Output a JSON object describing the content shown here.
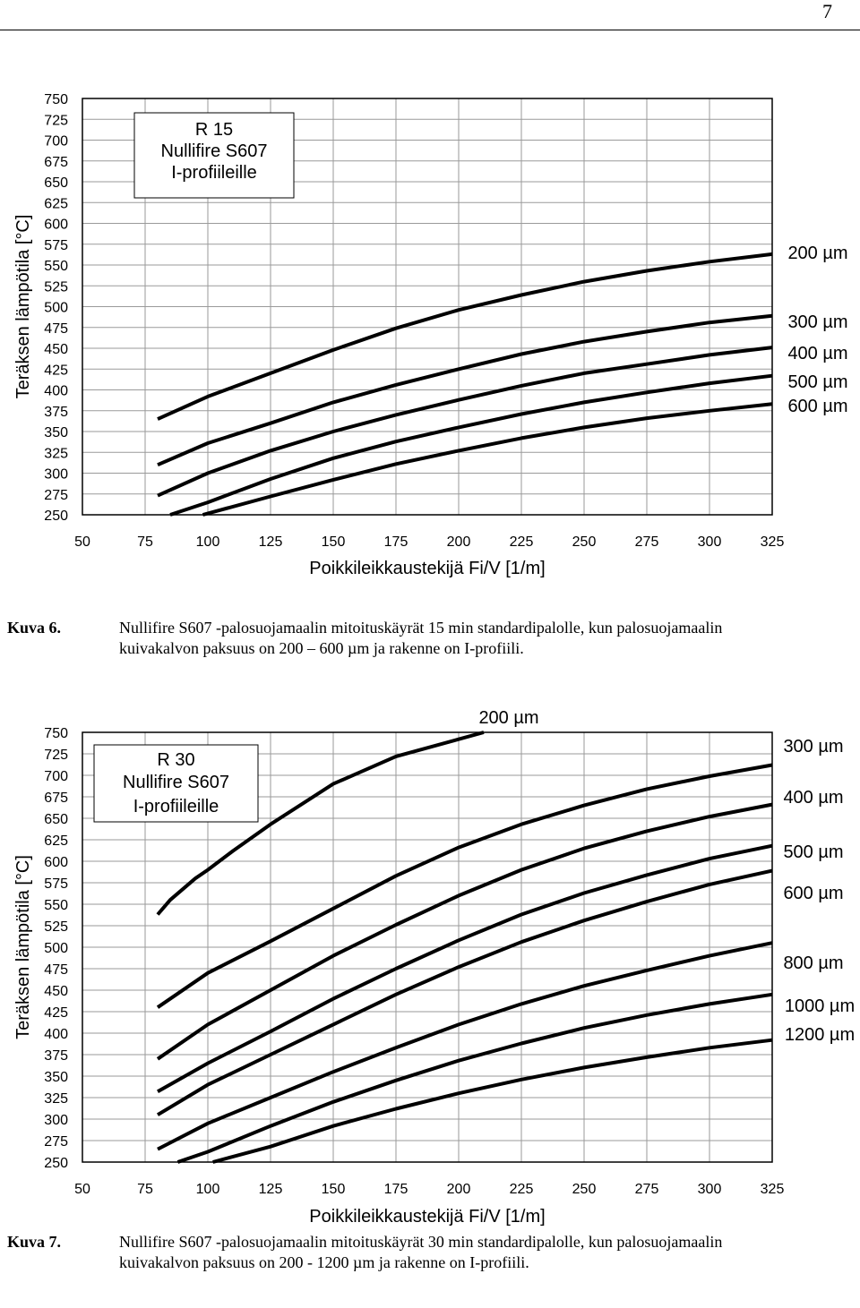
{
  "page_number": "7",
  "captions": [
    {
      "label": "Kuva 6.",
      "lines": [
        "Nullifire S607 -palosuojamaalin mitoituskäyrät 15 min standardipalolle, kun palosuojamaalin",
        "kuivakalvon paksuus on 200 – 600 µm ja rakenne on I-profiili."
      ]
    },
    {
      "label": "Kuva 7.",
      "lines": [
        "Nullifire S607 -palosuojamaalin mitoituskäyrät 30 min standardipalolle, kun palosuojamaalin",
        "kuivakalvon paksuus on 200 - 1200 µm ja rakenne on I-profiili."
      ]
    }
  ],
  "chart_data": [
    {
      "type": "line",
      "box_lines": [
        "R 15",
        "Nullifire S607",
        "I-profiileille"
      ],
      "xlabel": "Poikkileikkaustekijä Fi/V [1/m]",
      "ylabel": "Teräksen lämpötila [°C]",
      "xlim": [
        50,
        325
      ],
      "ylim": [
        250,
        750
      ],
      "xticks": [
        50,
        75,
        100,
        125,
        150,
        175,
        200,
        225,
        250,
        275,
        300,
        325
      ],
      "yticks": [
        250,
        275,
        300,
        325,
        350,
        375,
        400,
        425,
        450,
        475,
        500,
        525,
        550,
        575,
        600,
        625,
        650,
        675,
        700,
        725,
        750
      ],
      "grid": true,
      "line_color": "#000000",
      "series": [
        {
          "name": "200 µm",
          "x": [
            80,
            100,
            125,
            150,
            175,
            200,
            225,
            250,
            275,
            300,
            325
          ],
          "y": [
            365,
            392,
            420,
            448,
            474,
            496,
            514,
            530,
            543,
            554,
            563
          ]
        },
        {
          "name": "300 µm",
          "x": [
            80,
            100,
            125,
            150,
            175,
            200,
            225,
            250,
            275,
            300,
            325
          ],
          "y": [
            310,
            336,
            360,
            385,
            406,
            425,
            443,
            458,
            470,
            481,
            489
          ]
        },
        {
          "name": "400 µm",
          "x": [
            80,
            100,
            125,
            150,
            175,
            200,
            225,
            250,
            275,
            300,
            325
          ],
          "y": [
            273,
            300,
            327,
            350,
            370,
            388,
            405,
            420,
            431,
            442,
            451
          ]
        },
        {
          "name": "500 µm",
          "x": [
            85,
            100,
            125,
            150,
            175,
            200,
            225,
            250,
            275,
            300,
            325
          ],
          "y": [
            250,
            265,
            293,
            318,
            338,
            355,
            371,
            385,
            397,
            408,
            417
          ]
        },
        {
          "name": "600 µm",
          "x": [
            98,
            125,
            150,
            175,
            200,
            225,
            250,
            275,
            300,
            325
          ],
          "y": [
            250,
            272,
            292,
            311,
            327,
            342,
            355,
            366,
            375,
            383
          ]
        }
      ]
    },
    {
      "type": "line",
      "box_lines": [
        "R 30",
        "Nullifire S607",
        "I-profiileille"
      ],
      "xlabel": "Poikkileikkaustekijä Fi/V [1/m]",
      "ylabel": "Teräksen lämpötila [°C]",
      "xlim": [
        50,
        325
      ],
      "ylim": [
        250,
        750
      ],
      "xticks": [
        50,
        75,
        100,
        125,
        150,
        175,
        200,
        225,
        250,
        275,
        300,
        325
      ],
      "yticks": [
        250,
        275,
        300,
        325,
        350,
        375,
        400,
        425,
        450,
        475,
        500,
        525,
        550,
        575,
        600,
        625,
        650,
        675,
        700,
        725,
        750
      ],
      "grid": true,
      "line_color": "#000000",
      "series": [
        {
          "name": "200 µm",
          "x": [
            80,
            85,
            95,
            100,
            110,
            125,
            150,
            175,
            200,
            210
          ],
          "y": [
            538,
            555,
            580,
            590,
            612,
            643,
            690,
            722,
            742,
            750
          ]
        },
        {
          "name": "300 µm",
          "x": [
            80,
            100,
            125,
            150,
            175,
            200,
            225,
            250,
            275,
            300,
            325
          ],
          "y": [
            430,
            470,
            507,
            545,
            583,
            616,
            643,
            665,
            684,
            699,
            712
          ]
        },
        {
          "name": "400 µm",
          "x": [
            80,
            100,
            125,
            150,
            175,
            200,
            225,
            250,
            275,
            300,
            325
          ],
          "y": [
            370,
            410,
            450,
            490,
            526,
            560,
            590,
            615,
            635,
            652,
            666
          ]
        },
        {
          "name": "500 µm",
          "x": [
            80,
            100,
            125,
            150,
            175,
            200,
            225,
            250,
            275,
            300,
            325
          ],
          "y": [
            332,
            365,
            402,
            440,
            475,
            508,
            538,
            563,
            584,
            603,
            618
          ]
        },
        {
          "name": "600 µm",
          "x": [
            80,
            100,
            125,
            150,
            175,
            200,
            225,
            250,
            275,
            300,
            325
          ],
          "y": [
            305,
            340,
            375,
            410,
            445,
            477,
            506,
            531,
            553,
            573,
            589
          ]
        },
        {
          "name": "800 µm",
          "x": [
            80,
            100,
            125,
            150,
            175,
            200,
            225,
            250,
            275,
            300,
            325
          ],
          "y": [
            265,
            295,
            325,
            355,
            383,
            410,
            434,
            455,
            473,
            490,
            505
          ]
        },
        {
          "name": "1000 µm",
          "x": [
            88,
            100,
            125,
            150,
            175,
            200,
            225,
            250,
            275,
            300,
            325
          ],
          "y": [
            250,
            262,
            292,
            320,
            345,
            368,
            388,
            406,
            421,
            434,
            445
          ]
        },
        {
          "name": "1200 µm",
          "x": [
            102,
            125,
            150,
            175,
            200,
            225,
            250,
            275,
            300,
            325
          ],
          "y": [
            250,
            268,
            292,
            312,
            330,
            346,
            360,
            372,
            383,
            392
          ]
        }
      ]
    }
  ]
}
